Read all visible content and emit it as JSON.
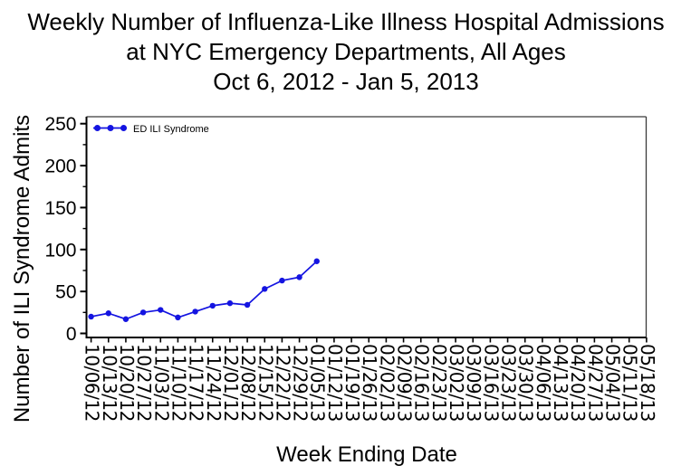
{
  "title": {
    "lines": [
      "Weekly Number of Influenza-Like Illness Hospital Admissions",
      "at NYC Emergency Departments,  All Ages",
      "Oct 6, 2012 -  Jan 5, 2013"
    ]
  },
  "chart_data": {
    "type": "line",
    "title": "Weekly Number of Influenza-Like Illness Hospital Admissions at NYC Emergency Departments, All Ages, Oct 6, 2012 - Jan 5, 2013",
    "xlabel": "Week Ending Date",
    "ylabel": "Number of ILI Syndrome Admits",
    "ylim": [
      0,
      250
    ],
    "yticks": [
      0,
      50,
      100,
      150,
      200,
      250
    ],
    "y_minor_ticks": [
      25,
      75,
      125,
      175,
      225
    ],
    "grid": false,
    "legend_position": "top-left-inside",
    "categories": [
      "10/06/12",
      "10/13/12",
      "10/20/12",
      "10/27/12",
      "11/03/12",
      "11/10/12",
      "11/17/12",
      "11/24/12",
      "12/01/12",
      "12/08/12",
      "12/15/12",
      "12/22/12",
      "12/29/12",
      "01/05/13",
      "01/12/13",
      "01/19/13",
      "01/26/13",
      "02/02/13",
      "02/09/13",
      "02/16/13",
      "02/23/13",
      "03/02/13",
      "03/09/13",
      "03/16/13",
      "03/23/13",
      "03/30/13",
      "04/06/13",
      "04/13/13",
      "04/20/13",
      "04/27/13",
      "05/04/13",
      "05/11/13",
      "05/18/13"
    ],
    "series": [
      {
        "name": "ED ILI Syndrome",
        "color": "#1414e1",
        "marker": "circle",
        "values": [
          20,
          24,
          17,
          25,
          28,
          19,
          26,
          33,
          36,
          34,
          53,
          63,
          67,
          86
        ]
      }
    ]
  },
  "colors": {
    "background": "#ffffff",
    "text": "#000000",
    "axis": "#000000",
    "frame": "#3a3a3a",
    "series_blue": "#1414e1"
  }
}
